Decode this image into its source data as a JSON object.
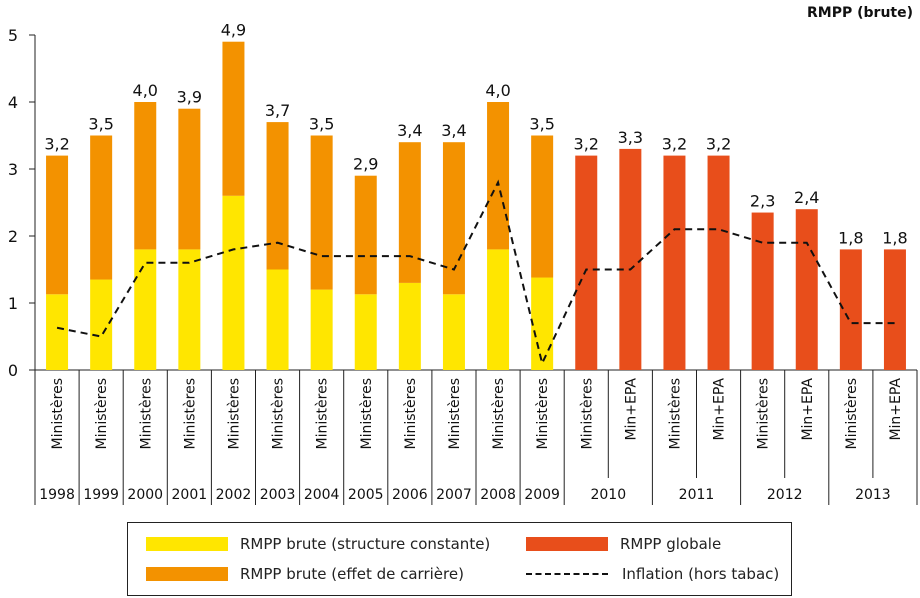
{
  "chart_data": {
    "type": "bar",
    "title": "RMPP (brute)",
    "ylim": [
      0,
      5
    ],
    "yticks": [
      0,
      1,
      2,
      3,
      4,
      5
    ],
    "grid": false,
    "categories": [
      "Ministères",
      "Ministères",
      "Ministères",
      "Ministères",
      "Ministères",
      "Ministères",
      "Ministères",
      "Ministères",
      "Ministères",
      "Ministères",
      "Ministères",
      "Ministères",
      "Ministères",
      "Min+EPA",
      "Ministères",
      "Min+EPA",
      "Ministères",
      "Min+EPA",
      "Ministères",
      "Min+EPA"
    ],
    "years": [
      {
        "label": "1998",
        "span": 1
      },
      {
        "label": "1999",
        "span": 1
      },
      {
        "label": "2000",
        "span": 1
      },
      {
        "label": "2001",
        "span": 1
      },
      {
        "label": "2002",
        "span": 1
      },
      {
        "label": "2003",
        "span": 1
      },
      {
        "label": "2004",
        "span": 1
      },
      {
        "label": "2005",
        "span": 1
      },
      {
        "label": "2006",
        "span": 1
      },
      {
        "label": "2007",
        "span": 1
      },
      {
        "label": "2008",
        "span": 1
      },
      {
        "label": "2009",
        "span": 1
      },
      {
        "label": "2010",
        "span": 2
      },
      {
        "label": "2011",
        "span": 2
      },
      {
        "label": "2012",
        "span": 2
      },
      {
        "label": "2013",
        "span": 2
      }
    ],
    "series": [
      {
        "name": "RMPP brute (structure constante)",
        "color": "#ffe600",
        "values": [
          1.13,
          1.35,
          1.8,
          1.8,
          2.6,
          1.5,
          1.2,
          1.13,
          1.3,
          1.13,
          1.8,
          1.38,
          null,
          null,
          null,
          null,
          null,
          null,
          null,
          null
        ]
      },
      {
        "name": "RMPP brute (effet de carrière)",
        "color": "#f39200",
        "values": [
          2.07,
          2.15,
          2.2,
          2.1,
          2.3,
          2.2,
          2.3,
          1.77,
          2.1,
          2.27,
          2.2,
          2.12,
          null,
          null,
          null,
          null,
          null,
          null,
          null,
          null
        ]
      },
      {
        "name": "RMPP globale",
        "color": "#e84e1b",
        "values": [
          null,
          null,
          null,
          null,
          null,
          null,
          null,
          null,
          null,
          null,
          null,
          null,
          3.2,
          3.3,
          3.2,
          3.2,
          2.35,
          2.4,
          1.8,
          1.8
        ]
      },
      {
        "name": "Inflation (hors tabac)",
        "type": "line",
        "style": "dashed",
        "color": "#111111",
        "values": [
          0.63,
          0.5,
          1.6,
          1.6,
          1.8,
          1.9,
          1.7,
          1.7,
          1.7,
          1.5,
          2.8,
          0.1,
          1.5,
          1.5,
          2.1,
          2.1,
          1.9,
          1.9,
          0.7,
          0.7
        ]
      }
    ],
    "data_labels": [
      "3,2",
      "3,5",
      "4,0",
      "3,9",
      "4,9",
      "3,7",
      "3,5",
      "2,9",
      "3,4",
      "3,4",
      "4,0",
      "3,5",
      "3,2",
      "3,3",
      "3,2",
      "3,2",
      "2,3",
      "2,4",
      "1,8",
      "1,8"
    ],
    "legend_position": "bottom"
  },
  "legend": {
    "items": [
      {
        "label": "RMPP brute (structure constante)",
        "color": "#ffe600"
      },
      {
        "label": "RMPP brute (effet de carrière)",
        "color": "#f39200"
      },
      {
        "label": "RMPP globale",
        "color": "#e84e1b"
      },
      {
        "label": "Inflation (hors tabac)",
        "color": "#111111"
      }
    ]
  }
}
